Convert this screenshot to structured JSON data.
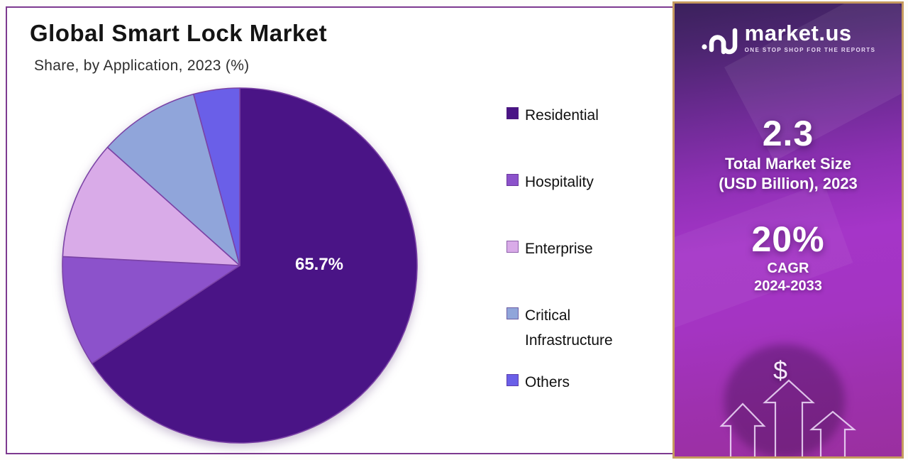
{
  "page": {
    "background": "#FFFFFF",
    "panel_border_color": "#7D3A8F",
    "sidebar_border_color": "#C69A5F"
  },
  "header": {
    "title": "Global Smart Lock Market",
    "subtitle": "Share, by Application, 2023 (%)"
  },
  "chart_data": {
    "type": "pie",
    "title": "Global Smart Lock Market",
    "subtitle": "Share, by Application, 2023 (%)",
    "unit": "% share of market, 2023",
    "start_angle_deg": -90,
    "direction": "clockwise",
    "legend_position": "right",
    "slices": [
      {
        "label": "Residential",
        "value": 65.7,
        "color": "#4A1486",
        "data_label": "65.7%"
      },
      {
        "label": "Hospitality",
        "value": 10.1,
        "color": "#8C52CB",
        "estimated": true
      },
      {
        "label": "Enterprise",
        "value": 10.8,
        "color": "#D9ABE8",
        "estimated": true
      },
      {
        "label": "Critical Infrastructure",
        "value": 9.2,
        "color": "#90A5DA",
        "estimated": true
      },
      {
        "label": "Others",
        "value": 4.2,
        "color": "#6A5FE8",
        "estimated": true
      }
    ],
    "notes": "Only the Residential slice is labeled (65.7%); remaining values estimated from slice angles."
  },
  "pie_style": {
    "stroke": "#7B43A6"
  },
  "sidebar": {
    "logo": {
      "brand": "market.us",
      "tagline": "ONE STOP SHOP FOR THE REPORTS"
    },
    "stats": [
      {
        "value": "2.3",
        "label_line1": "Total Market Size",
        "label_line2": "(USD Billion), 2023"
      },
      {
        "value": "20%",
        "label_line1": "CAGR",
        "label_line2": "2024-2033"
      }
    ],
    "dollar_symbol": "$"
  }
}
